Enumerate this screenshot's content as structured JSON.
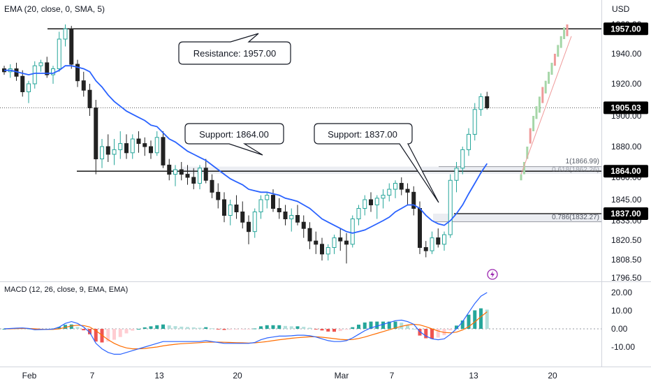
{
  "indicator_label": "EMA (20, close, 0, SMA, 5)",
  "currency": "USD",
  "colors": {
    "up": "#26a69a",
    "down": "#222222",
    "ema": "#2962ff",
    "macd": "#2962ff",
    "signal": "#ff6d00",
    "hist_up": "#26a69a",
    "hist_up_light": "#b2dfdb",
    "hist_down": "#ef5350",
    "hist_down_light": "#ffcdd2",
    "projection_up": "#a5d6a7",
    "projection_down": "#ef9a9a",
    "lightning": "#9c27b0"
  },
  "callouts": {
    "resistance": "Resistance: 1957.00",
    "support_1864": "Support: 1864.00",
    "support_1837": "Support: 1837.00"
  },
  "fib": {
    "level_1": "1(1866.99)",
    "level_0786": "0.786(1832.27)",
    "level_0618": "0.618(1862.26)"
  },
  "chart_data": [
    {
      "type": "candlestick",
      "x_labels": [
        "Feb",
        "7",
        "13",
        "20",
        "Mar",
        "7",
        "13",
        "20"
      ],
      "y_ticks": [
        "1960.00",
        "1940.00",
        "1920.00",
        "1900.00",
        "1880.00",
        "1860.00",
        "1845.00",
        "1833.00",
        "1820.50",
        "1808.50",
        "1796.50"
      ],
      "ylim": [
        1796.5,
        1962
      ],
      "horizontal_levels": [
        1957.0,
        1864.0,
        1837.0
      ],
      "level_labels": [
        "1957.00",
        "1864.00",
        "1837.00"
      ],
      "last_price": 1905.03,
      "last_price_label": "1905.03",
      "ohlc": [
        [
          1930,
          1932,
          1926,
          1928
        ],
        [
          1928,
          1933,
          1924,
          1930
        ],
        [
          1930,
          1934,
          1922,
          1925
        ],
        [
          1925,
          1929,
          1912,
          1915
        ],
        [
          1915,
          1922,
          1908,
          1920
        ],
        [
          1920,
          1935,
          1917,
          1932
        ],
        [
          1932,
          1936,
          1928,
          1934
        ],
        [
          1934,
          1938,
          1924,
          1926
        ],
        [
          1926,
          1932,
          1920,
          1930
        ],
        [
          1930,
          1955,
          1928,
          1950
        ],
        [
          1950,
          1960,
          1945,
          1957
        ],
        [
          1957,
          1959,
          1930,
          1933
        ],
        [
          1933,
          1936,
          1918,
          1922
        ],
        [
          1922,
          1928,
          1912,
          1916
        ],
        [
          1916,
          1920,
          1900,
          1905
        ],
        [
          1905,
          1910,
          1862,
          1872
        ],
        [
          1872,
          1885,
          1866,
          1880
        ],
        [
          1880,
          1888,
          1870,
          1875
        ],
        [
          1875,
          1885,
          1868,
          1878
        ],
        [
          1878,
          1890,
          1872,
          1882
        ],
        [
          1882,
          1888,
          1872,
          1876
        ],
        [
          1876,
          1888,
          1872,
          1885
        ],
        [
          1885,
          1890,
          1876,
          1882
        ],
        [
          1882,
          1886,
          1874,
          1880
        ],
        [
          1880,
          1884,
          1872,
          1876
        ],
        [
          1876,
          1890,
          1874,
          1886
        ],
        [
          1886,
          1890,
          1866,
          1868
        ],
        [
          1868,
          1872,
          1858,
          1862
        ],
        [
          1862,
          1868,
          1854,
          1865
        ],
        [
          1865,
          1870,
          1858,
          1862
        ],
        [
          1862,
          1868,
          1855,
          1860
        ],
        [
          1860,
          1866,
          1852,
          1856
        ],
        [
          1856,
          1868,
          1852,
          1866
        ],
        [
          1866,
          1872,
          1856,
          1858
        ],
        [
          1858,
          1862,
          1846,
          1850
        ],
        [
          1850,
          1856,
          1840,
          1845
        ],
        [
          1845,
          1850,
          1832,
          1836
        ],
        [
          1836,
          1845,
          1830,
          1842
        ],
        [
          1842,
          1848,
          1834,
          1838
        ],
        [
          1838,
          1844,
          1828,
          1832
        ],
        [
          1832,
          1836,
          1818,
          1826
        ],
        [
          1826,
          1840,
          1822,
          1838
        ],
        [
          1838,
          1848,
          1834,
          1845
        ],
        [
          1845,
          1850,
          1840,
          1848
        ],
        [
          1848,
          1852,
          1838,
          1840
        ],
        [
          1840,
          1846,
          1834,
          1838
        ],
        [
          1838,
          1842,
          1830,
          1834
        ],
        [
          1834,
          1840,
          1826,
          1836
        ],
        [
          1836,
          1842,
          1830,
          1832
        ],
        [
          1832,
          1836,
          1822,
          1828
        ],
        [
          1828,
          1832,
          1815,
          1820
        ],
        [
          1820,
          1826,
          1812,
          1818
        ],
        [
          1818,
          1822,
          1808,
          1812
        ],
        [
          1812,
          1818,
          1808,
          1816
        ],
        [
          1816,
          1824,
          1812,
          1822
        ],
        [
          1822,
          1828,
          1814,
          1820
        ],
        [
          1820,
          1825,
          1806,
          1818
        ],
        [
          1818,
          1836,
          1816,
          1834
        ],
        [
          1834,
          1842,
          1830,
          1840
        ],
        [
          1840,
          1848,
          1836,
          1845
        ],
        [
          1845,
          1850,
          1838,
          1842
        ],
        [
          1842,
          1848,
          1834,
          1846
        ],
        [
          1846,
          1852,
          1840,
          1848
        ],
        [
          1848,
          1856,
          1844,
          1852
        ],
        [
          1852,
          1858,
          1846,
          1856
        ],
        [
          1856,
          1860,
          1848,
          1852
        ],
        [
          1852,
          1856,
          1842,
          1850
        ],
        [
          1850,
          1854,
          1836,
          1840
        ],
        [
          1840,
          1844,
          1812,
          1816
        ],
        [
          1816,
          1820,
          1810,
          1814
        ],
        [
          1814,
          1826,
          1812,
          1822
        ],
        [
          1822,
          1828,
          1816,
          1818
        ],
        [
          1818,
          1826,
          1814,
          1824
        ],
        [
          1824,
          1862,
          1822,
          1858
        ],
        [
          1858,
          1870,
          1850,
          1866
        ],
        [
          1866,
          1880,
          1862,
          1878
        ],
        [
          1878,
          1892,
          1874,
          1888
        ],
        [
          1888,
          1908,
          1884,
          1904
        ],
        [
          1904,
          1914,
          1900,
          1912
        ],
        [
          1912,
          1915,
          1904,
          1905
        ]
      ],
      "ema": [
        1929,
        1929,
        1928,
        1927,
        1926,
        1927,
        1927,
        1927,
        1927,
        1929,
        1932,
        1932,
        1931,
        1930,
        1928,
        1922,
        1918,
        1913,
        1909,
        1906,
        1903,
        1901,
        1899,
        1897,
        1894,
        1893,
        1889,
        1885,
        1883,
        1880,
        1877,
        1875,
        1873,
        1871,
        1868,
        1865,
        1862,
        1859,
        1857,
        1855,
        1852,
        1851,
        1850,
        1850,
        1849,
        1848,
        1846,
        1845,
        1844,
        1842,
        1840,
        1837,
        1834,
        1832,
        1830,
        1828,
        1826,
        1825,
        1826,
        1827,
        1829,
        1831,
        1833,
        1835,
        1838,
        1840,
        1842,
        1842,
        1840,
        1836,
        1833,
        1831,
        1830,
        1833,
        1837,
        1842,
        1849,
        1856,
        1863,
        1869
      ],
      "projection_points": [
        [
          1858,
          1862
        ],
        [
          1862,
          1870
        ],
        [
          1872,
          1880
        ],
        [
          1882,
          1892
        ],
        [
          1890,
          1900
        ],
        [
          1898,
          1906
        ],
        [
          1902,
          1912
        ],
        [
          1908,
          1918
        ],
        [
          1914,
          1922
        ],
        [
          1920,
          1928
        ],
        [
          1926,
          1934
        ],
        [
          1932,
          1940
        ],
        [
          1938,
          1946
        ],
        [
          1944,
          1952
        ],
        [
          1950,
          1958
        ],
        [
          1952,
          1960
        ]
      ]
    },
    {
      "type": "macd",
      "title": "MACD (12, 26, close, 9, EMA, EMA)",
      "y_ticks": [
        "20.00",
        "10.00",
        "0.00",
        "-10.00"
      ],
      "ylim": [
        -18,
        24
      ],
      "macd": [
        0,
        0.2,
        0.4,
        0.5,
        0.2,
        -0.5,
        -0.4,
        -0.3,
        -0.1,
        1,
        3,
        4,
        3,
        1,
        -2,
        -8,
        -11,
        -13,
        -14,
        -14,
        -13,
        -12,
        -11,
        -10,
        -9,
        -8,
        -7,
        -7,
        -7,
        -7,
        -7,
        -7,
        -7,
        -6.5,
        -7,
        -7.5,
        -8,
        -8,
        -8,
        -8,
        -8,
        -7.5,
        -6,
        -5,
        -4.5,
        -4,
        -4,
        -3.8,
        -3.5,
        -3.5,
        -3.8,
        -4.5,
        -5.5,
        -6.5,
        -7,
        -7,
        -6.5,
        -5,
        -3,
        -1,
        0.5,
        1.5,
        2.5,
        3.5,
        4.5,
        4.8,
        4,
        2.5,
        -1.5,
        -4,
        -5.5,
        -6,
        -5.5,
        -3,
        0,
        4,
        9,
        14,
        18,
        20
      ],
      "signal": [
        0,
        0,
        0.1,
        0.2,
        0.2,
        0,
        -0.2,
        -0.3,
        -0.3,
        0,
        0.8,
        1.6,
        2,
        1.8,
        1,
        -1,
        -3.5,
        -6,
        -8,
        -9.5,
        -10.5,
        -11,
        -11,
        -10.8,
        -10.4,
        -10,
        -9.4,
        -8.9,
        -8.5,
        -8.2,
        -8,
        -7.8,
        -7.6,
        -7.4,
        -7.3,
        -7.3,
        -7.4,
        -7.5,
        -7.6,
        -7.7,
        -7.8,
        -7.7,
        -7.4,
        -7,
        -6.5,
        -6,
        -5.6,
        -5.2,
        -4.9,
        -4.6,
        -4.4,
        -4.4,
        -4.6,
        -5,
        -5.4,
        -5.8,
        -6,
        -5.9,
        -5.3,
        -4.5,
        -3.5,
        -2.5,
        -1.5,
        -0.5,
        0.5,
        1.4,
        2.1,
        2.5,
        2.2,
        1.2,
        0,
        -1.2,
        -2,
        -2.2,
        -1.8,
        -0.6,
        1.2,
        3.8,
        6.7,
        9.4
      ]
    }
  ]
}
